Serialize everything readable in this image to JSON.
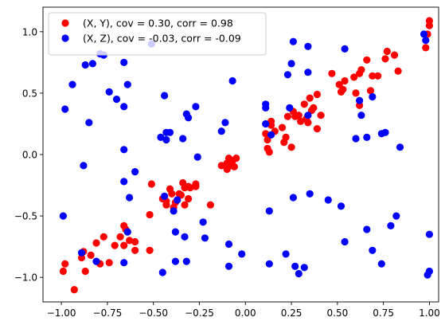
{
  "chart_data": {
    "type": "scatter",
    "title": "",
    "xlabel": "",
    "ylabel": "",
    "xlim": [
      -1.1,
      1.05
    ],
    "ylim": [
      -1.2,
      1.2
    ],
    "xticks": [
      -1.0,
      -0.75,
      -0.5,
      -0.25,
      0.0,
      0.25,
      0.5,
      0.75,
      1.0
    ],
    "xtick_labels": [
      "−1.00",
      "−0.75",
      "−0.50",
      "−0.25",
      "0.00",
      "0.25",
      "0.50",
      "0.75",
      "1.00"
    ],
    "yticks": [
      -1.0,
      -0.5,
      0.0,
      0.5,
      1.0
    ],
    "ytick_labels": [
      "−1.0",
      "−0.5",
      "0.0",
      "0.5",
      "1.0"
    ],
    "grid": false,
    "legend_position": "upper-left",
    "series": [
      {
        "name": "(X, Y), cov = 0.30, corr = 0.98",
        "color": "#ff0000",
        "points": [
          [
            -0.99,
            -0.95
          ],
          [
            -0.98,
            -0.89
          ],
          [
            -0.93,
            -1.1
          ],
          [
            -0.89,
            -0.84
          ],
          [
            -0.88,
            -0.79
          ],
          [
            -0.87,
            -0.95
          ],
          [
            -0.84,
            -0.82
          ],
          [
            -0.81,
            -0.72
          ],
          [
            -0.79,
            -0.89
          ],
          [
            -0.77,
            -0.67
          ],
          [
            -0.74,
            -0.88
          ],
          [
            -0.71,
            -0.74
          ],
          [
            -0.68,
            -0.67
          ],
          [
            -0.66,
            -0.58
          ],
          [
            -0.66,
            -0.74
          ],
          [
            -0.65,
            -0.61
          ],
          [
            -0.63,
            -0.7
          ],
          [
            -0.6,
            -0.71
          ],
          [
            -0.6,
            -0.78
          ],
          [
            -0.52,
            -0.49
          ],
          [
            -0.52,
            -0.78
          ],
          [
            -0.51,
            -0.24
          ],
          [
            -0.45,
            -0.36
          ],
          [
            -0.43,
            -0.38
          ],
          [
            -0.43,
            -0.41
          ],
          [
            -0.41,
            -0.28
          ],
          [
            -0.4,
            -0.32
          ],
          [
            -0.39,
            -0.43
          ],
          [
            -0.38,
            -0.39
          ],
          [
            -0.36,
            -0.32
          ],
          [
            -0.35,
            -0.33
          ],
          [
            -0.34,
            -0.23
          ],
          [
            -0.33,
            -0.41
          ],
          [
            -0.33,
            -0.27
          ],
          [
            -0.31,
            -0.26
          ],
          [
            -0.31,
            -0.36
          ],
          [
            -0.3,
            -0.27
          ],
          [
            -0.27,
            -0.24
          ],
          [
            -0.27,
            -0.26
          ],
          [
            -0.19,
            -0.41
          ],
          [
            -0.13,
            -0.09
          ],
          [
            -0.11,
            -0.09
          ],
          [
            -0.1,
            -0.07
          ],
          [
            -0.1,
            -0.12
          ],
          [
            -0.09,
            -0.03
          ],
          [
            -0.08,
            -0.09
          ],
          [
            -0.07,
            -0.05
          ],
          [
            -0.06,
            -0.1
          ],
          [
            -0.05,
            -0.03
          ],
          [
            0.11,
            0.17
          ],
          [
            0.12,
            0.05
          ],
          [
            0.12,
            0.12
          ],
          [
            0.13,
            0.02
          ],
          [
            0.14,
            0.24
          ],
          [
            0.14,
            0.27
          ],
          [
            0.16,
            0.19
          ],
          [
            0.2,
            0.22
          ],
          [
            0.21,
            0.1
          ],
          [
            0.22,
            0.14
          ],
          [
            0.23,
            0.31
          ],
          [
            0.25,
            0.06
          ],
          [
            0.26,
            0.35
          ],
          [
            0.27,
            0.31
          ],
          [
            0.29,
            0.32
          ],
          [
            0.3,
            0.27
          ],
          [
            0.32,
            0.41
          ],
          [
            0.33,
            0.29
          ],
          [
            0.34,
            0.26
          ],
          [
            0.35,
            0.46
          ],
          [
            0.36,
            0.36
          ],
          [
            0.37,
            0.38
          ],
          [
            0.39,
            0.49
          ],
          [
            0.39,
            0.21
          ],
          [
            0.41,
            0.32
          ],
          [
            0.47,
            0.66
          ],
          [
            0.51,
            0.57
          ],
          [
            0.52,
            0.51
          ],
          [
            0.53,
            0.53
          ],
          [
            0.54,
            0.6
          ],
          [
            0.59,
            0.63
          ],
          [
            0.6,
            0.5
          ],
          [
            0.62,
            0.66
          ],
          [
            0.62,
            0.4
          ],
          [
            0.63,
            0.69
          ],
          [
            0.66,
            0.77
          ],
          [
            0.68,
            0.52
          ],
          [
            0.69,
            0.64
          ],
          [
            0.72,
            0.64
          ],
          [
            0.76,
            0.78
          ],
          [
            0.77,
            0.84
          ],
          [
            0.81,
            0.81
          ],
          [
            0.83,
            0.68
          ],
          [
            0.98,
            0.87
          ],
          [
            0.99,
            0.98
          ],
          [
            1.0,
            1.05
          ],
          [
            1.0,
            1.09
          ]
        ]
      },
      {
        "name": "(X, Z), cov = -0.03, corr = -0.09",
        "color": "#0000ff",
        "points": [
          [
            -0.99,
            -0.5
          ],
          [
            -0.98,
            0.37
          ],
          [
            -0.94,
            0.57
          ],
          [
            -0.89,
            -0.8
          ],
          [
            -0.88,
            -0.09
          ],
          [
            -0.87,
            0.73
          ],
          [
            -0.85,
            0.26
          ],
          [
            -0.83,
            0.74
          ],
          [
            -0.81,
            -0.87
          ],
          [
            -0.79,
            0.82
          ],
          [
            -0.77,
            0.81
          ],
          [
            -0.74,
            0.51
          ],
          [
            -0.7,
            0.45
          ],
          [
            -0.66,
            0.75
          ],
          [
            -0.66,
            0.04
          ],
          [
            -0.66,
            0.39
          ],
          [
            -0.66,
            -0.22
          ],
          [
            -0.66,
            -0.88
          ],
          [
            -0.64,
            -0.63
          ],
          [
            -0.64,
            0.57
          ],
          [
            -0.63,
            -0.35
          ],
          [
            -0.6,
            -0.14
          ],
          [
            -0.51,
            0.9
          ],
          [
            -0.46,
            0.14
          ],
          [
            -0.45,
            -0.96
          ],
          [
            -0.44,
            -0.34
          ],
          [
            -0.44,
            0.48
          ],
          [
            -0.43,
            0.18
          ],
          [
            -0.43,
            0.12
          ],
          [
            -0.41,
            0.18
          ],
          [
            -0.39,
            -0.46
          ],
          [
            -0.38,
            -0.63
          ],
          [
            -0.38,
            -0.87
          ],
          [
            -0.37,
            -0.37
          ],
          [
            -0.34,
            0.13
          ],
          [
            -0.33,
            -0.67
          ],
          [
            -0.32,
            -0.87
          ],
          [
            -0.32,
            0.33
          ],
          [
            -0.31,
            0.3
          ],
          [
            -0.27,
            0.39
          ],
          [
            -0.26,
            -0.02
          ],
          [
            -0.23,
            -0.55
          ],
          [
            -0.22,
            -0.68
          ],
          [
            -0.13,
            0.19
          ],
          [
            -0.11,
            0.26
          ],
          [
            -0.09,
            -0.73
          ],
          [
            -0.09,
            -0.91
          ],
          [
            -0.07,
            0.6
          ],
          [
            -0.02,
            -0.81
          ],
          [
            0.11,
            0.41
          ],
          [
            0.11,
            0.38
          ],
          [
            0.11,
            0.25
          ],
          [
            0.13,
            -0.46
          ],
          [
            0.13,
            -0.89
          ],
          [
            0.14,
            0.16
          ],
          [
            0.22,
            -0.81
          ],
          [
            0.23,
            0.65
          ],
          [
            0.24,
            0.38
          ],
          [
            0.25,
            0.74
          ],
          [
            0.26,
            0.92
          ],
          [
            0.26,
            -0.35
          ],
          [
            0.27,
            -0.91
          ],
          [
            0.29,
            -0.97
          ],
          [
            0.32,
            -0.92
          ],
          [
            0.34,
            0.88
          ],
          [
            0.34,
            0.67
          ],
          [
            0.34,
            0.32
          ],
          [
            0.35,
            -0.32
          ],
          [
            0.45,
            -0.37
          ],
          [
            0.52,
            -0.42
          ],
          [
            0.54,
            0.86
          ],
          [
            0.54,
            -0.71
          ],
          [
            0.6,
            0.13
          ],
          [
            0.62,
            0.44
          ],
          [
            0.63,
            0.32
          ],
          [
            0.66,
            0.14
          ],
          [
            0.66,
            -0.61
          ],
          [
            0.69,
            0.47
          ],
          [
            0.69,
            -0.78
          ],
          [
            0.74,
            -0.89
          ],
          [
            0.74,
            0.17
          ],
          [
            0.76,
            0.18
          ],
          [
            0.79,
            -0.58
          ],
          [
            0.82,
            -0.5
          ],
          [
            0.84,
            0.06
          ],
          [
            0.97,
            0.98
          ],
          [
            0.98,
            0.93
          ],
          [
            0.99,
            -0.98
          ],
          [
            1.0,
            -0.95
          ],
          [
            1.0,
            -0.65
          ]
        ]
      }
    ]
  }
}
